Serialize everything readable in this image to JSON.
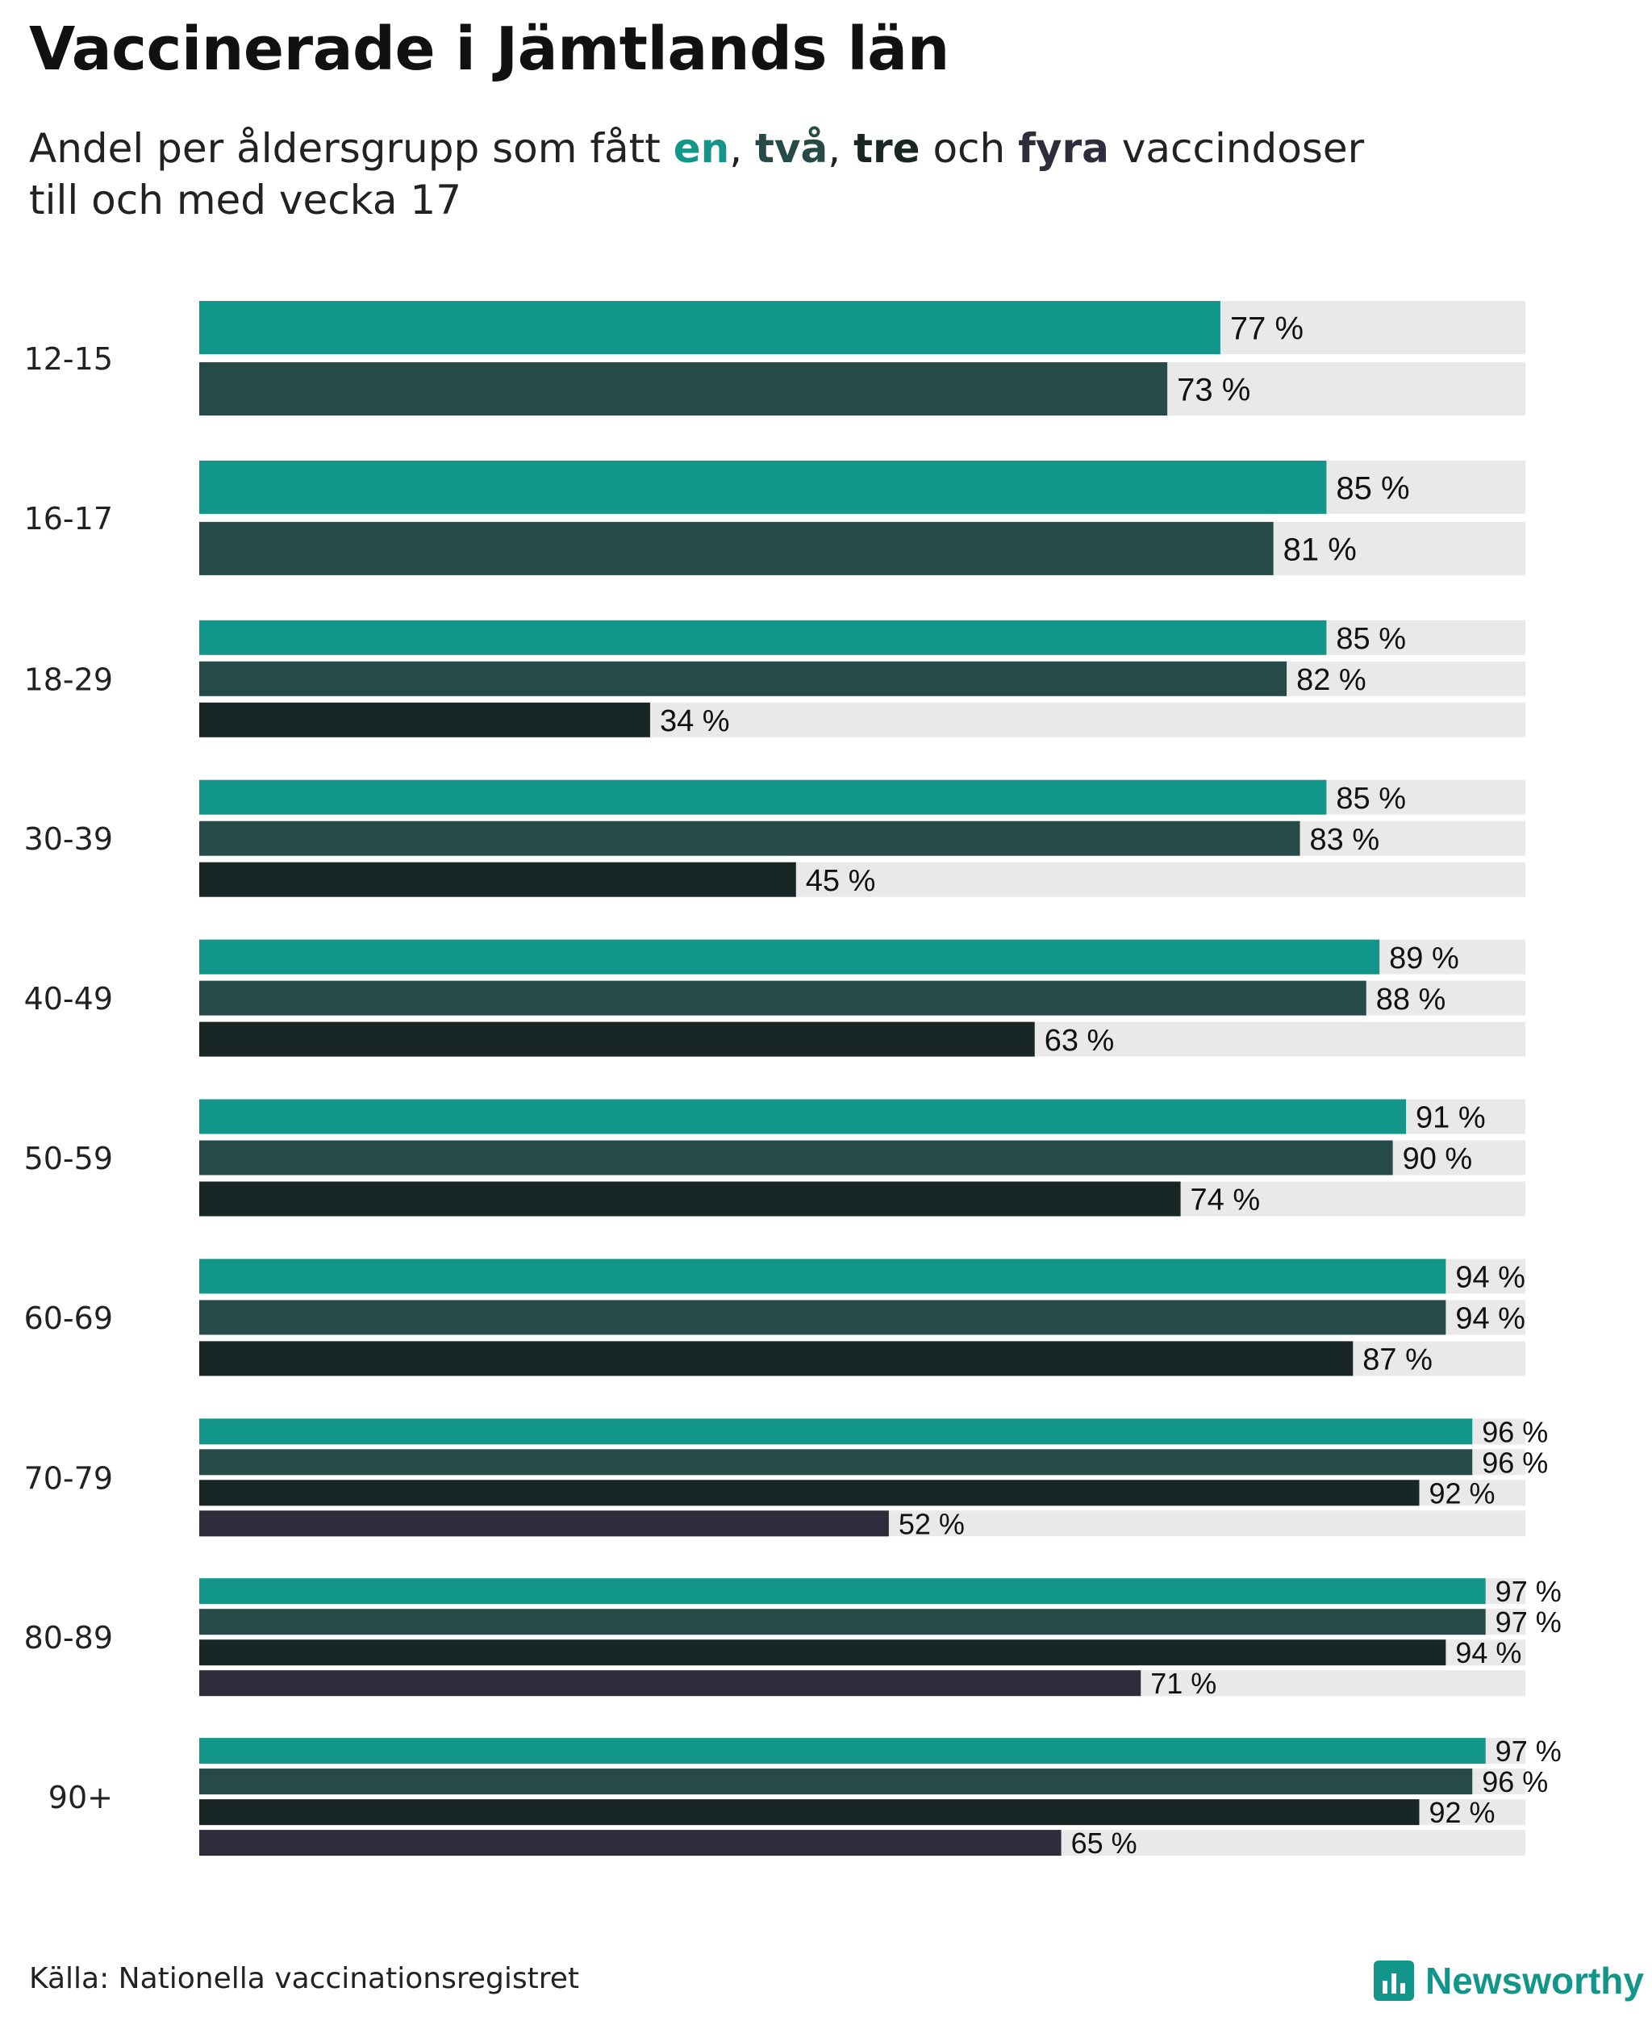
{
  "title": "Vaccinerade i Jämtlands län",
  "subtitle": {
    "prefix": "Andel per åldersgrupp som fått ",
    "dose1": "en",
    "sep1": ", ",
    "dose2": "två",
    "sep2": ", ",
    "dose3": "tre",
    "and": " och ",
    "dose4": "fyra",
    "suffix": " vaccindoser",
    "line2": "till och med vecka 17"
  },
  "source": "Källa: Nationella vaccinationsregistret",
  "brand": {
    "name": "Newsworthy",
    "icon": "newsworthy-logo-icon"
  },
  "colors": {
    "dose1": "#13968a",
    "dose2": "#264a47",
    "dose3": "#182726",
    "dose4": "#2e2d3b",
    "track": "#e9e9e9",
    "brand": "#13968a"
  },
  "chart_data": {
    "type": "bar",
    "orientation": "horizontal",
    "unit": "%",
    "value_suffix": " %",
    "xlim": [
      0,
      100
    ],
    "series_names": [
      "en",
      "två",
      "tre",
      "fyra"
    ],
    "groups": [
      {
        "label": "12-15",
        "values": [
          77,
          73
        ]
      },
      {
        "label": "16-17",
        "values": [
          85,
          81
        ]
      },
      {
        "label": "18-29",
        "values": [
          85,
          82,
          34
        ]
      },
      {
        "label": "30-39",
        "values": [
          85,
          83,
          45
        ]
      },
      {
        "label": "40-49",
        "values": [
          89,
          88,
          63
        ]
      },
      {
        "label": "50-59",
        "values": [
          91,
          90,
          74
        ]
      },
      {
        "label": "60-69",
        "values": [
          94,
          94,
          87
        ]
      },
      {
        "label": "70-79",
        "values": [
          96,
          96,
          92,
          52
        ]
      },
      {
        "label": "80-89",
        "values": [
          97,
          97,
          94,
          71
        ]
      },
      {
        "label": "90+",
        "values": [
          97,
          96,
          92,
          65
        ]
      }
    ]
  }
}
